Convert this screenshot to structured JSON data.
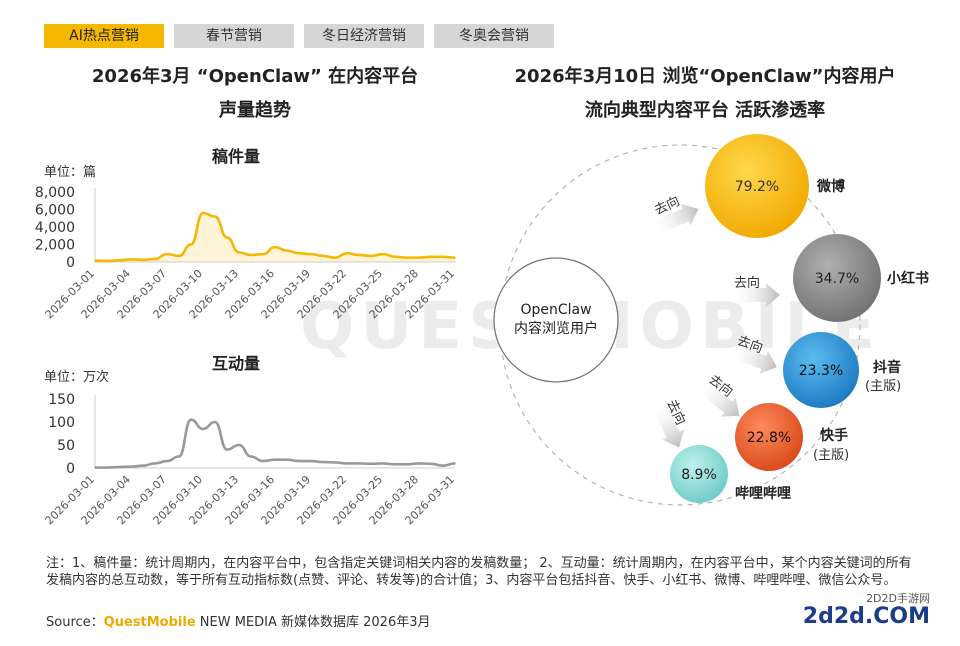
{
  "tabs": [
    "AI热点营销",
    "春节营销",
    "冬日经济营销",
    "冬奥会营销"
  ],
  "left": {
    "title_line1": "2026年3月 “OpenClaw” 在内容平台",
    "title_line2": "声量趋势"
  },
  "right": {
    "title_line1": "2026年3月10日 浏览“OpenClaw”内容用户",
    "title_line2": "流向典型内容平台 活跃渗透率"
  },
  "chart_data": [
    {
      "type": "area",
      "title": "稿件量",
      "unit_label": "单位：篇",
      "ylim": [
        0,
        8000
      ],
      "yticks": [
        "8,000",
        "6,000",
        "4,000",
        "2,000",
        "0"
      ],
      "ytick_values": [
        8000,
        6000,
        4000,
        2000,
        0
      ],
      "tick_labels": [
        "2026-03-01",
        "2026-03-04",
        "2026-03-07",
        "2026-03-10",
        "2026-03-13",
        "2026-03-16",
        "2026-03-19",
        "2026-03-22",
        "2026-03-25",
        "2026-03-28",
        "2026-03-31"
      ],
      "x": [
        "2026-03-01",
        "2026-03-02",
        "2026-03-03",
        "2026-03-04",
        "2026-03-05",
        "2026-03-06",
        "2026-03-07",
        "2026-03-08",
        "2026-03-09",
        "2026-03-10",
        "2026-03-11",
        "2026-03-12",
        "2026-03-13",
        "2026-03-14",
        "2026-03-15",
        "2026-03-16",
        "2026-03-17",
        "2026-03-18",
        "2026-03-19",
        "2026-03-20",
        "2026-03-21",
        "2026-03-22",
        "2026-03-23",
        "2026-03-24",
        "2026-03-25",
        "2026-03-26",
        "2026-03-27",
        "2026-03-28",
        "2026-03-29",
        "2026-03-30",
        "2026-03-31"
      ],
      "values": [
        150,
        120,
        200,
        300,
        250,
        350,
        900,
        700,
        2000,
        5600,
        5200,
        2800,
        1100,
        800,
        900,
        1700,
        1300,
        1000,
        900,
        700,
        500,
        1000,
        800,
        700,
        900,
        600,
        500,
        500,
        600,
        600,
        500
      ],
      "color": "#f5b800"
    },
    {
      "type": "line",
      "title": "互动量",
      "unit_label": "单位：万次",
      "ylim": [
        0,
        150
      ],
      "yticks": [
        "150",
        "100",
        "50",
        "0"
      ],
      "ytick_values": [
        150,
        100,
        50,
        0
      ],
      "tick_labels": [
        "2026-03-01",
        "2026-03-04",
        "2026-03-07",
        "2026-03-10",
        "2026-03-13",
        "2026-03-16",
        "2026-03-19",
        "2026-03-22",
        "2026-03-25",
        "2026-03-28",
        "2026-03-31"
      ],
      "x": [
        "2026-03-01",
        "2026-03-02",
        "2026-03-03",
        "2026-03-04",
        "2026-03-05",
        "2026-03-06",
        "2026-03-07",
        "2026-03-08",
        "2026-03-09",
        "2026-03-10",
        "2026-03-11",
        "2026-03-12",
        "2026-03-13",
        "2026-03-14",
        "2026-03-15",
        "2026-03-16",
        "2026-03-17",
        "2026-03-18",
        "2026-03-19",
        "2026-03-20",
        "2026-03-21",
        "2026-03-22",
        "2026-03-23",
        "2026-03-24",
        "2026-03-25",
        "2026-03-26",
        "2026-03-27",
        "2026-03-28",
        "2026-03-29",
        "2026-03-30",
        "2026-03-31"
      ],
      "values": [
        1,
        1,
        2,
        3,
        5,
        10,
        15,
        25,
        105,
        85,
        100,
        40,
        50,
        25,
        15,
        18,
        18,
        15,
        15,
        13,
        12,
        10,
        10,
        9,
        10,
        8,
        8,
        10,
        9,
        5,
        10
      ],
      "color": "#999999"
    }
  ],
  "flow": {
    "source_label_line1": "OpenClaw",
    "source_label_line2": "内容浏览用户",
    "arrow_label": "去向",
    "platforms": [
      {
        "name": "微博",
        "subname": "",
        "value": "79.2%",
        "color": "#f7b500"
      },
      {
        "name": "小红书",
        "subname": "",
        "value": "34.7%",
        "color": "#8c8c8c"
      },
      {
        "name": "抖音",
        "subname": "(主版)",
        "value": "23.3%",
        "color": "#2a8fd4"
      },
      {
        "name": "快手",
        "subname": "(主版)",
        "value": "22.8%",
        "color": "#e85a2a"
      },
      {
        "name": "哔哩哔哩",
        "subname": "",
        "value": "8.9%",
        "color": "#7fd4d0"
      }
    ]
  },
  "note": "注：1、稿件量：统计周期内，在内容平台中，包含指定关键词相关内容的发稿数量； 2、互动量：统计周期内，在内容平台中，某个内容关键词的所有发稿内容的总互动数，等于所有互动指标数(点赞、评论、转发等)的合计值；3、内容平台包括抖音、快手、小红书、微博、哔哩哔哩、微信公众号。",
  "source": {
    "prefix": "Source：",
    "brand": "QuestMobile",
    "text": " NEW MEDIA 新媒体数据库 2026年3月"
  },
  "watermark": "QUESTMOBILE",
  "logo": {
    "sub": "2D2D手游网",
    "main": "2d2d.COM"
  }
}
